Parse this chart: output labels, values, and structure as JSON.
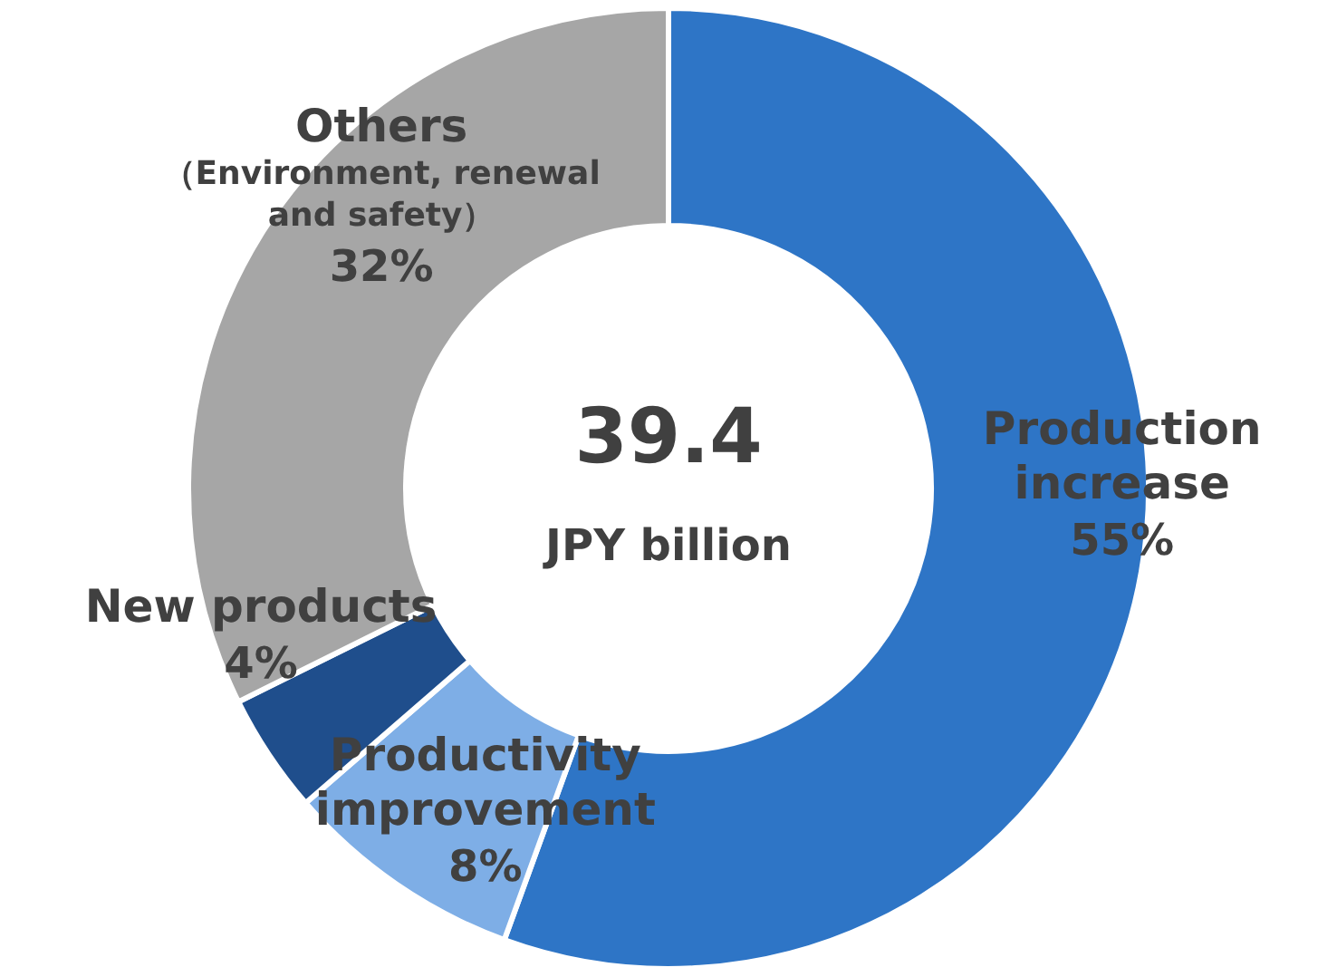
{
  "chart_data": {
    "type": "donut",
    "categories": [
      "Production increase",
      "Productivity improvement",
      "New products",
      "Others（Environment, renewal and safety）"
    ],
    "values": [
      55,
      8,
      4,
      32
    ],
    "colors": [
      "#2e75c6",
      "#7eaee6",
      "#1f4e8c",
      "#a6a6a6"
    ],
    "value_labels": [
      "55%",
      "8%",
      "4%",
      "32%"
    ],
    "annotations": [
      "39.4",
      "JPY billion"
    ]
  }
}
